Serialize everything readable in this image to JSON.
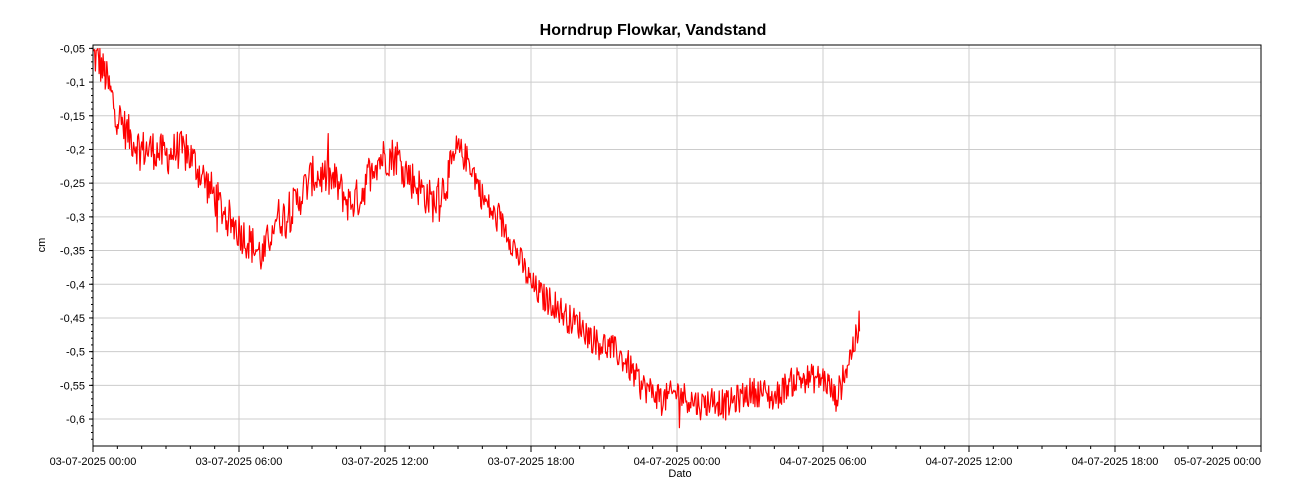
{
  "chart_data": {
    "type": "line",
    "title": "Horndrup Flowkar, Vandstand",
    "xlabel": "Dato",
    "ylabel": "cm",
    "x_range": [
      "03-07-2025 00:00",
      "05-07-2025 00:00"
    ],
    "ylim": [
      -0.64,
      -0.045
    ],
    "x_ticks": [
      "03-07-2025 00:00",
      "03-07-2025 06:00",
      "03-07-2025 12:00",
      "03-07-2025 18:00",
      "04-07-2025 00:00",
      "04-07-2025 06:00",
      "04-07-2025 12:00",
      "04-07-2025 18:00",
      "05-07-2025 00:00"
    ],
    "y_ticks": [
      "-0,05",
      "-0,1",
      "-0,15",
      "-0,2",
      "-0,25",
      "-0,3",
      "-0,35",
      "-0,4",
      "-0,45",
      "-0,5",
      "-0,55",
      "-0,6"
    ],
    "grid": true,
    "series": [
      {
        "color": "#ff0000",
        "x": [
          "03-07-2025 00:00",
          "03-07-2025 00:15",
          "03-07-2025 00:30",
          "03-07-2025 00:45",
          "03-07-2025 01:00",
          "03-07-2025 01:30",
          "03-07-2025 02:00",
          "03-07-2025 02:30",
          "03-07-2025 03:00",
          "03-07-2025 03:30",
          "03-07-2025 04:00",
          "03-07-2025 04:30",
          "03-07-2025 05:00",
          "03-07-2025 05:30",
          "03-07-2025 06:00",
          "03-07-2025 06:30",
          "03-07-2025 07:00",
          "03-07-2025 07:30",
          "03-07-2025 08:00",
          "03-07-2025 08:30",
          "03-07-2025 09:00",
          "03-07-2025 09:30",
          "03-07-2025 10:00",
          "03-07-2025 10:30",
          "03-07-2025 11:00",
          "03-07-2025 11:30",
          "03-07-2025 12:00",
          "03-07-2025 12:30",
          "03-07-2025 13:00",
          "03-07-2025 13:30",
          "03-07-2025 14:00",
          "03-07-2025 14:30",
          "03-07-2025 15:00",
          "03-07-2025 15:30",
          "03-07-2025 16:00",
          "03-07-2025 16:30",
          "03-07-2025 17:00",
          "03-07-2025 17:30",
          "03-07-2025 18:00",
          "03-07-2025 18:30",
          "03-07-2025 19:00",
          "03-07-2025 19:30",
          "03-07-2025 20:00",
          "03-07-2025 20:30",
          "03-07-2025 21:00",
          "03-07-2025 21:30",
          "03-07-2025 22:00",
          "03-07-2025 22:30",
          "03-07-2025 23:00",
          "03-07-2025 23:30",
          "04-07-2025 00:00",
          "04-07-2025 00:30",
          "04-07-2025 01:00",
          "04-07-2025 01:30",
          "04-07-2025 02:00",
          "04-07-2025 02:30",
          "04-07-2025 03:00",
          "04-07-2025 03:30",
          "04-07-2025 04:00",
          "04-07-2025 04:30",
          "04-07-2025 05:00",
          "04-07-2025 05:30",
          "04-07-2025 06:00",
          "04-07-2025 06:15",
          "04-07-2025 06:30",
          "04-07-2025 06:45",
          "04-07-2025 07:00",
          "04-07-2025 07:15",
          "04-07-2025 07:30"
        ],
        "y": [
          -0.06,
          -0.07,
          -0.09,
          -0.12,
          -0.15,
          -0.18,
          -0.2,
          -0.2,
          -0.21,
          -0.2,
          -0.21,
          -0.24,
          -0.27,
          -0.3,
          -0.32,
          -0.34,
          -0.36,
          -0.3,
          -0.3,
          -0.27,
          -0.24,
          -0.24,
          -0.25,
          -0.28,
          -0.27,
          -0.22,
          -0.21,
          -0.21,
          -0.24,
          -0.26,
          -0.28,
          -0.25,
          -0.2,
          -0.22,
          -0.27,
          -0.3,
          -0.32,
          -0.36,
          -0.4,
          -0.42,
          -0.43,
          -0.45,
          -0.46,
          -0.48,
          -0.49,
          -0.5,
          -0.52,
          -0.55,
          -0.56,
          -0.57,
          -0.56,
          -0.57,
          -0.58,
          -0.57,
          -0.58,
          -0.57,
          -0.56,
          -0.56,
          -0.57,
          -0.55,
          -0.54,
          -0.54,
          -0.54,
          -0.55,
          -0.57,
          -0.55,
          -0.52,
          -0.49,
          -0.47
        ]
      }
    ]
  }
}
